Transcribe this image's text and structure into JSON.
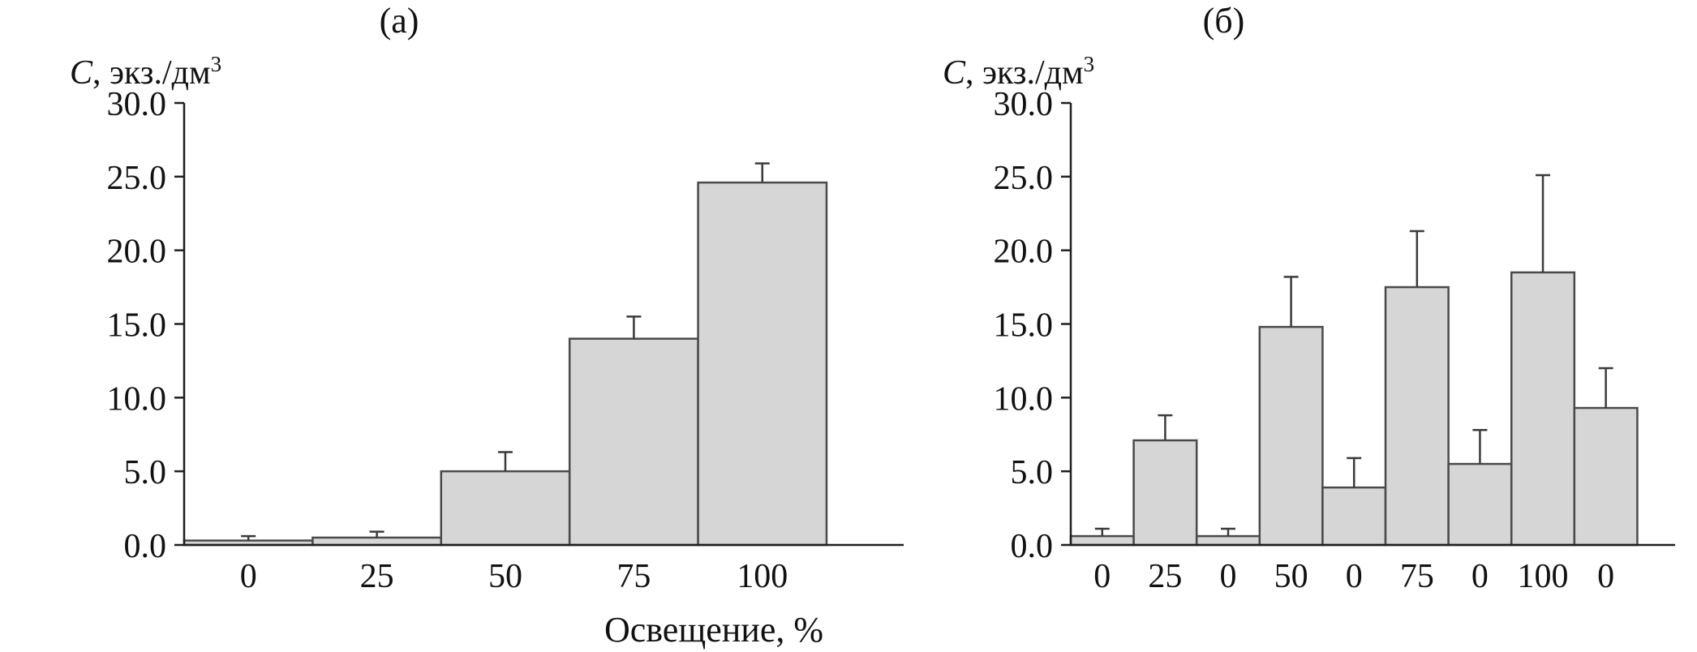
{
  "figure": {
    "xlabel": "Освещение, %",
    "background": "#ffffff",
    "axis_color": "#1f1f1f",
    "error_bar_color": "#3a3a3a"
  },
  "chart_data": [
    {
      "type": "bar",
      "panel_label": "(а)",
      "y_axis_title": {
        "var": "C",
        "rest": ", экз./дм",
        "sup": "3"
      },
      "x_axis_title": "Освещение, %",
      "categories": [
        "0",
        "25",
        "50",
        "75",
        "100"
      ],
      "values": [
        0.3,
        0.5,
        5.0,
        14.0,
        24.6
      ],
      "errors_plus": [
        0.3,
        0.4,
        1.3,
        1.5,
        1.3
      ],
      "ylim": [
        0,
        30
      ],
      "ytick_step": 5,
      "ytick_labels": [
        "0.0",
        "5.0",
        "10.0",
        "15.0",
        "20.0",
        "25.0",
        "30.0"
      ],
      "grid": "off",
      "legend": "none",
      "bar_fill": "#d6d6d6",
      "bar_stroke": "#4a4a4a"
    },
    {
      "type": "bar",
      "panel_label": "(б)",
      "y_axis_title": {
        "var": "C",
        "rest": ", экз./дм",
        "sup": "3"
      },
      "x_axis_title": "Освещение, %",
      "categories": [
        "0",
        "25",
        "0",
        "50",
        "0",
        "75",
        "0",
        "100",
        "0"
      ],
      "values": [
        0.6,
        7.1,
        0.6,
        14.8,
        3.9,
        17.5,
        5.5,
        18.5,
        9.3
      ],
      "errors_plus": [
        0.5,
        1.7,
        0.5,
        3.4,
        2.0,
        3.8,
        2.3,
        6.6,
        2.7
      ],
      "ylim": [
        0,
        30
      ],
      "ytick_step": 5,
      "ytick_labels": [
        "0.0",
        "5.0",
        "10.0",
        "15.0",
        "20.0",
        "25.0",
        "30.0"
      ],
      "grid": "off",
      "legend": "none",
      "bar_fill": "#d6d6d6",
      "bar_stroke": "#4a4a4a"
    }
  ]
}
